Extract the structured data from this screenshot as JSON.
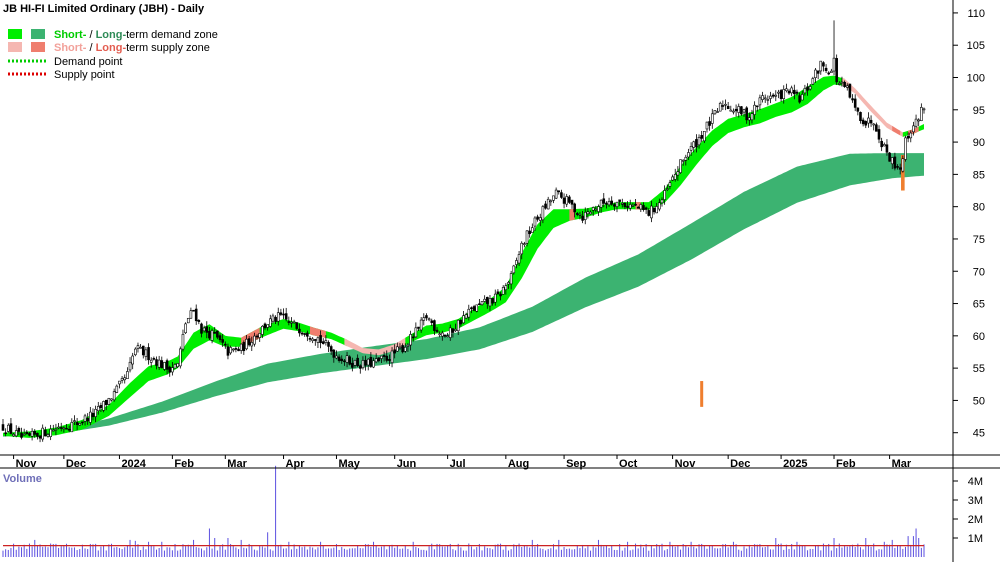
{
  "chart_data": {
    "type": "candlestick",
    "title": "JB HI-FI Limited Ordinary (JBH) - Daily",
    "legend": {
      "row1": {
        "short": "Short-",
        "sep": " / ",
        "long": "Long-",
        "rest": "term demand zone"
      },
      "row2": {
        "short": "Short-",
        "sep": " / ",
        "long": "Long-",
        "rest": "term supply zone"
      },
      "row3": "Demand point",
      "row4": "Supply point",
      "placement": "top-left"
    },
    "colors": {
      "short_demand": "#00ee00",
      "long_demand": "#3cb371",
      "short_supply": "#f5b7b1",
      "long_supply": "#ef7e6e",
      "demand_point": "#00cc00",
      "supply_point": "#dd0000",
      "short_demand_text": "#00cc00",
      "long_demand_text": "#2e8b57",
      "short_supply_text": "#f2a19a",
      "long_supply_text": "#e35d50",
      "volume_bar": "#5b4fe0",
      "volume_ma": "#cc2222",
      "volume_label": "#6f6fb8",
      "axis": "#000000"
    },
    "price_axis": {
      "ylim": [
        40,
        112
      ],
      "ticks": [
        45,
        50,
        55,
        60,
        65,
        70,
        75,
        80,
        85,
        90,
        95,
        100,
        105,
        110
      ],
      "tick_labels": [
        "45",
        "50",
        "55",
        "60",
        "65",
        "70",
        "75",
        "80",
        "85",
        "90",
        "95",
        "100",
        "105",
        "110"
      ]
    },
    "x_axis": {
      "months": [
        "Nov",
        "Dec",
        "2024",
        "Feb",
        "Mar",
        "Apr",
        "May",
        "Jun",
        "Jul",
        "Aug",
        "Sep",
        "Oct",
        "Nov",
        "Dec",
        "2025",
        "Feb",
        "Mar"
      ],
      "month_starts": [
        4,
        23,
        44,
        64,
        84,
        106,
        126,
        148,
        168,
        190,
        212,
        232,
        253,
        274,
        294,
        314,
        335
      ],
      "n_bars": 349
    },
    "close_anchors": [
      [
        0,
        46
      ],
      [
        8,
        44
      ],
      [
        15,
        45
      ],
      [
        22,
        46
      ],
      [
        28,
        46.5
      ],
      [
        35,
        48
      ],
      [
        42,
        51
      ],
      [
        47,
        54
      ],
      [
        50,
        58
      ],
      [
        55,
        57
      ],
      [
        62,
        55
      ],
      [
        66,
        55.5
      ],
      [
        69,
        62
      ],
      [
        72,
        64
      ],
      [
        75,
        61
      ],
      [
        80,
        60
      ],
      [
        85,
        57.5
      ],
      [
        90,
        58
      ],
      [
        95,
        60
      ],
      [
        100,
        62
      ],
      [
        105,
        63
      ],
      [
        108,
        62
      ],
      [
        113,
        61
      ],
      [
        118,
        60
      ],
      [
        122,
        58.5
      ],
      [
        126,
        57
      ],
      [
        131,
        56
      ],
      [
        136,
        55.5
      ],
      [
        142,
        56
      ],
      [
        147,
        57
      ],
      [
        152,
        58.5
      ],
      [
        157,
        61
      ],
      [
        160,
        63
      ],
      [
        164,
        61
      ],
      [
        168,
        60
      ],
      [
        172,
        62
      ],
      [
        177,
        64
      ],
      [
        182,
        65
      ],
      [
        187,
        66
      ],
      [
        192,
        69
      ],
      [
        196,
        74
      ],
      [
        200,
        77
      ],
      [
        205,
        80
      ],
      [
        209,
        82
      ],
      [
        214,
        80.5
      ],
      [
        219,
        78.5
      ],
      [
        224,
        80
      ],
      [
        229,
        81
      ],
      [
        234,
        80.5
      ],
      [
        239,
        80
      ],
      [
        244,
        79
      ],
      [
        249,
        81
      ],
      [
        254,
        85
      ],
      [
        258,
        88
      ],
      [
        262,
        90
      ],
      [
        267,
        93
      ],
      [
        272,
        96
      ],
      [
        277,
        95
      ],
      [
        282,
        94
      ],
      [
        287,
        97
      ],
      [
        292,
        97
      ],
      [
        297,
        98
      ],
      [
        301,
        96.5
      ],
      [
        305,
        99
      ],
      [
        309,
        102
      ],
      [
        313,
        101
      ],
      [
        316,
        99
      ],
      [
        319,
        98
      ],
      [
        322,
        95
      ],
      [
        326,
        93
      ],
      [
        329,
        93.5
      ],
      [
        332,
        90
      ],
      [
        336,
        87
      ],
      [
        339,
        86
      ],
      [
        341,
        90
      ],
      [
        343,
        92
      ],
      [
        345,
        93
      ],
      [
        347,
        95
      ],
      [
        348,
        95.5
      ]
    ],
    "short_zone_anchors": [
      [
        0,
        44.5,
        45
      ],
      [
        10,
        44.2,
        45.2
      ],
      [
        20,
        44.6,
        45.8
      ],
      [
        30,
        45.5,
        47
      ],
      [
        40,
        47.6,
        49.3
      ],
      [
        48,
        50.5,
        52.7
      ],
      [
        55,
        53,
        55.3
      ],
      [
        62,
        54,
        56
      ],
      [
        66,
        55,
        56.8
      ],
      [
        72,
        58,
        60.5
      ],
      [
        78,
        59.3,
        61.8
      ],
      [
        84,
        58.3,
        60
      ],
      [
        90,
        58.3,
        59.7
      ],
      [
        98,
        59.8,
        61.5
      ],
      [
        106,
        61.1,
        62.6
      ],
      [
        112,
        60.7,
        62
      ],
      [
        118,
        60,
        61.2
      ],
      [
        124,
        59.5,
        60.5
      ],
      [
        130,
        58.4,
        59.4
      ],
      [
        136,
        57.3,
        58.1
      ],
      [
        142,
        57,
        57.9
      ],
      [
        148,
        57.7,
        58.7
      ],
      [
        154,
        59,
        60.2
      ],
      [
        160,
        60.1,
        61.6
      ],
      [
        166,
        60.5,
        61.9
      ],
      [
        172,
        61.1,
        62.6
      ],
      [
        178,
        62.4,
        64.2
      ],
      [
        184,
        63.7,
        65.7
      ],
      [
        190,
        65.2,
        67.6
      ],
      [
        196,
        68.9,
        72.8
      ],
      [
        202,
        73.5,
        77.3
      ],
      [
        208,
        76.7,
        79.6
      ],
      [
        214,
        77.8,
        79.6
      ],
      [
        220,
        78.3,
        79.7
      ],
      [
        226,
        79.1,
        80.2
      ],
      [
        232,
        79.6,
        80.7
      ],
      [
        238,
        79.6,
        80.7
      ],
      [
        244,
        79.5,
        80.7
      ],
      [
        250,
        80.6,
        82.7
      ],
      [
        256,
        83.3,
        86.3
      ],
      [
        262,
        86.5,
        89.2
      ],
      [
        268,
        89.4,
        91.8
      ],
      [
        274,
        91.4,
        93.6
      ],
      [
        280,
        92.3,
        94.3
      ],
      [
        286,
        92.9,
        95.1
      ],
      [
        292,
        93.9,
        96
      ],
      [
        298,
        94.6,
        97
      ],
      [
        304,
        95.9,
        98.6
      ],
      [
        310,
        98,
        100.1
      ],
      [
        314,
        98.9,
        100.3
      ],
      [
        318,
        98.7,
        99.8
      ],
      [
        322,
        97.5,
        98.3
      ],
      [
        328,
        94.7,
        95.6
      ],
      [
        334,
        92.2,
        93
      ],
      [
        340,
        90.8,
        91.5
      ],
      [
        344,
        91.3,
        92
      ],
      [
        348,
        92,
        92.8
      ]
    ],
    "long_zone_anchors": [
      [
        0,
        44.4,
        44.7
      ],
      [
        20,
        44.8,
        45.4
      ],
      [
        40,
        46.1,
        47.2
      ],
      [
        60,
        48.1,
        49.8
      ],
      [
        80,
        50.6,
        52.9
      ],
      [
        100,
        52.8,
        55.7
      ],
      [
        120,
        54.2,
        57.2
      ],
      [
        140,
        55.3,
        58.4
      ],
      [
        160,
        56.4,
        59.5
      ],
      [
        180,
        57.9,
        61.3
      ],
      [
        200,
        60.6,
        64.5
      ],
      [
        220,
        64.4,
        69
      ],
      [
        240,
        67.6,
        72.6
      ],
      [
        260,
        71.8,
        77.4
      ],
      [
        280,
        76.5,
        82.3
      ],
      [
        300,
        80.6,
        86.2
      ],
      [
        320,
        83.3,
        88.2
      ],
      [
        336,
        84.4,
        88.3
      ],
      [
        348,
        84.8,
        88.3
      ]
    ],
    "supply_short_ranges": [
      [
        130,
        152
      ],
      [
        318,
        340
      ]
    ],
    "supply_long_ranges": [
      [
        90,
        97
      ],
      [
        116,
        122
      ],
      [
        214,
        216
      ],
      [
        239,
        241
      ],
      [
        336,
        339
      ],
      [
        342,
        346
      ]
    ],
    "spike_bars": [
      [
        264,
        49,
        53
      ]
    ],
    "volume": {
      "label": "Volume",
      "ylim": [
        0,
        5
      ],
      "ticks": [
        1,
        2,
        3,
        4
      ],
      "tick_labels": [
        "1M",
        "2M",
        "3M",
        "4M"
      ],
      "base_million": 0.55,
      "spikes": [
        [
          12,
          0.9
        ],
        [
          48,
          0.9
        ],
        [
          50,
          0.85
        ],
        [
          55,
          0.8
        ],
        [
          60,
          0.8
        ],
        [
          72,
          0.9
        ],
        [
          78,
          1.5
        ],
        [
          80,
          1.0
        ],
        [
          85,
          1.0
        ],
        [
          90,
          0.9
        ],
        [
          100,
          1.3
        ],
        [
          103,
          4.8
        ],
        [
          108,
          0.8
        ],
        [
          120,
          0.8
        ],
        [
          140,
          0.8
        ],
        [
          155,
          0.8
        ],
        [
          162,
          0.7
        ],
        [
          188,
          0.7
        ],
        [
          200,
          0.9
        ],
        [
          210,
          0.9
        ],
        [
          225,
          0.9
        ],
        [
          236,
          0.8
        ],
        [
          252,
          0.8
        ],
        [
          260,
          0.8
        ],
        [
          276,
          0.8
        ],
        [
          292,
          1.0
        ],
        [
          300,
          0.8
        ],
        [
          314,
          1.0
        ],
        [
          326,
          1.0
        ],
        [
          333,
          0.8
        ],
        [
          336,
          0.9
        ],
        [
          342,
          1.1
        ],
        [
          344,
          1.1
        ],
        [
          345,
          1.5
        ],
        [
          346,
          1.0
        ]
      ],
      "ma_million": 0.6
    }
  }
}
